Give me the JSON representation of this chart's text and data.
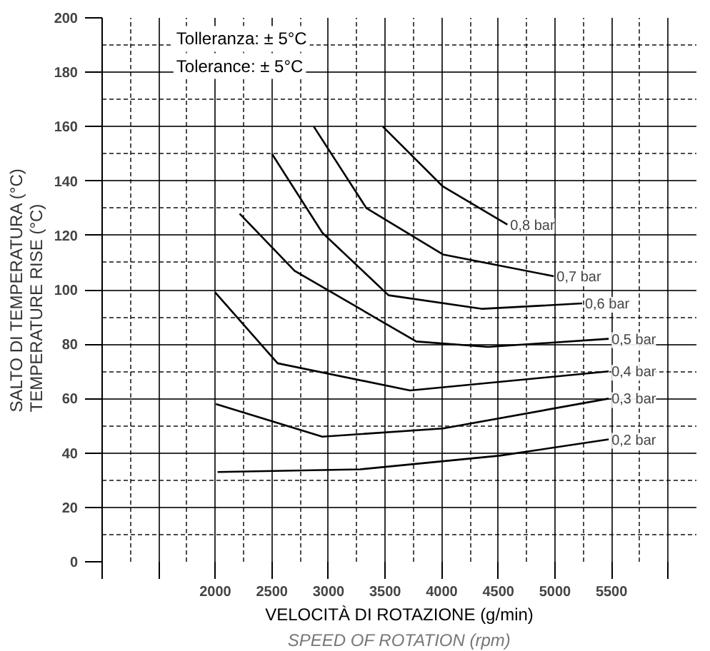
{
  "chart_data": {
    "type": "line",
    "xlabel": "VELOCITÀ DI ROTAZIONE (g/min)\nSPEED OF ROTATION (rpm)",
    "ylabel": "SALTO DI TEMPERATURA (°C)\nTEMPERATURE RISE (°C)",
    "annotations": [
      "Tolleranza: ± 5°C",
      "Tolerance: ± 5°C"
    ],
    "xlim": [
      1000,
      6250
    ],
    "ylim": [
      0,
      200
    ],
    "xticks": [
      {
        "value": 1000,
        "label": null
      },
      {
        "value": 1500,
        "label": null
      },
      2000,
      2500,
      3000,
      3500,
      4000,
      4500,
      5000,
      5500,
      {
        "value": 6000,
        "label": null
      }
    ],
    "yticks": [
      0,
      20,
      40,
      60,
      80,
      100,
      120,
      140,
      160,
      180,
      200
    ],
    "grid": true,
    "legend": false,
    "marker": "none",
    "line_style": "solid",
    "series": [
      {
        "name": "0,8 bar",
        "color": "#000000",
        "x": [
          3480,
          4010,
          4580
        ],
        "values": [
          160,
          138,
          124
        ]
      },
      {
        "name": "0,7 bar",
        "color": "#000000",
        "x": [
          2870,
          3335,
          4010,
          4990
        ],
        "values": [
          160,
          130,
          113,
          105
        ]
      },
      {
        "name": "0,6 bar",
        "color": "#000000",
        "x": [
          2500,
          2945,
          3530,
          4360,
          5240
        ],
        "values": [
          150,
          121,
          98,
          93,
          95
        ]
      },
      {
        "name": "0,5 bar",
        "color": "#000000",
        "x": [
          2215,
          2700,
          3775,
          4410,
          5475
        ],
        "values": [
          128,
          107,
          81,
          79,
          82
        ]
      },
      {
        "name": "0,4 bar",
        "color": "#000000",
        "x": [
          2000,
          2550,
          3720,
          5475
        ],
        "values": [
          99,
          73,
          63,
          70
        ]
      },
      {
        "name": "0,3 bar",
        "color": "#000000",
        "x": [
          2005,
          2945,
          4010,
          5475
        ],
        "values": [
          58,
          46,
          49,
          60
        ]
      },
      {
        "name": "0,2 bar",
        "color": "#000000",
        "x": [
          2020,
          3280,
          4510,
          5475
        ],
        "values": [
          33,
          34,
          39,
          45
        ]
      }
    ]
  }
}
